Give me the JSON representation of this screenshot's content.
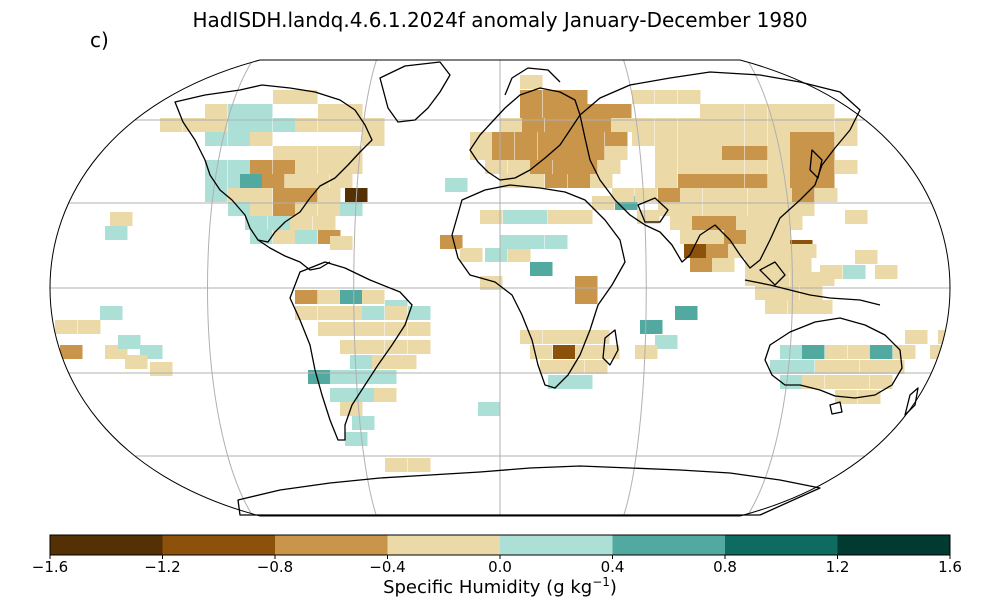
{
  "title": "HadISDH.landq.4.6.1.2024f anomaly January-December 1980",
  "panel_label": "c)",
  "colorbar": {
    "label_prefix": "Specific Humidity (g kg",
    "label_exp": "−1",
    "label_suffix": ")",
    "ticks": [
      "−1.6",
      "−1.2",
      "−0.8",
      "−0.4",
      "0.0",
      "0.4",
      "0.8",
      "1.2",
      "1.6"
    ],
    "bins": [
      {
        "from": -1.6,
        "to": -1.2,
        "color": "#543005"
      },
      {
        "from": -1.2,
        "to": -0.8,
        "color": "#8c510a"
      },
      {
        "from": -0.8,
        "to": -0.4,
        "color": "#c9954a"
      },
      {
        "from": -0.4,
        "to": 0.0,
        "color": "#ecd9a8"
      },
      {
        "from": 0.0,
        "to": 0.4,
        "color": "#acdfd6"
      },
      {
        "from": 0.4,
        "to": 0.8,
        "color": "#52a9a0"
      },
      {
        "from": 0.8,
        "to": 1.2,
        "color": "#0d6b60"
      },
      {
        "from": 1.2,
        "to": 1.6,
        "color": "#003a30"
      }
    ]
  },
  "map": {
    "projection": "Robinson",
    "gridline_color": "#b0b0b0",
    "coastline_color": "#000000"
  }
}
